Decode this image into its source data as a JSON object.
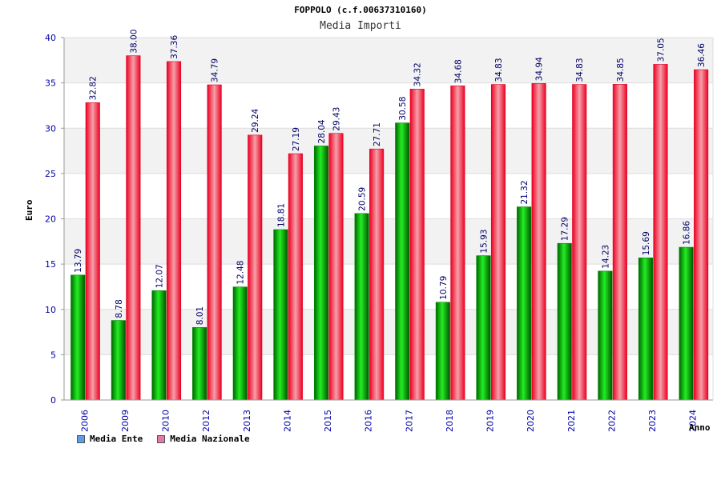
{
  "chart_data": {
    "type": "bar",
    "title": "FOPPOLO (c.f.00637310160)",
    "subtitle": "Media Importi",
    "xlabel": "Anno",
    "ylabel": "Euro",
    "ylim": [
      0,
      40
    ],
    "yticks": [
      0,
      5,
      10,
      15,
      20,
      25,
      30,
      35,
      40
    ],
    "categories": [
      "2006",
      "2009",
      "2010",
      "2012",
      "2013",
      "2014",
      "2015",
      "2016",
      "2017",
      "2018",
      "2019",
      "2020",
      "2021",
      "2022",
      "2023",
      "2024"
    ],
    "series": [
      {
        "name": "Media Ente",
        "color": "#00cc00",
        "values": [
          13.79,
          8.78,
          12.07,
          8.01,
          12.48,
          18.81,
          28.04,
          20.59,
          30.58,
          10.79,
          15.93,
          21.32,
          17.29,
          14.23,
          15.69,
          16.86
        ],
        "labels": [
          "13.79",
          "8.78",
          "12.07",
          "8.01",
          "12.48",
          "18.81",
          "28.04",
          "20.59",
          "30.58",
          "10.79",
          "15.93",
          "21.32",
          "17.29",
          "14.23",
          "15.69",
          "16.86"
        ]
      },
      {
        "name": "Media Nazionale",
        "color": "#ee1133",
        "values": [
          32.82,
          38.0,
          37.36,
          34.79,
          29.24,
          27.19,
          29.43,
          27.71,
          34.32,
          34.68,
          34.83,
          34.94,
          34.83,
          34.85,
          37.05,
          36.46
        ],
        "labels": [
          "32.82",
          "38.00",
          "37.36",
          "34.79",
          "29.24",
          "27.19",
          "29.43",
          "27.71",
          "34.32",
          "34.68",
          "34.83",
          "34.94",
          "34.83",
          "34.85",
          "37.05",
          "36.46"
        ]
      }
    ],
    "legend": [
      {
        "name": "Media Ente",
        "color": "#5aa0e6"
      },
      {
        "name": "Media Nazionale",
        "color": "#e07aa8"
      }
    ],
    "legend_position": "bottom-left",
    "grid": true
  }
}
